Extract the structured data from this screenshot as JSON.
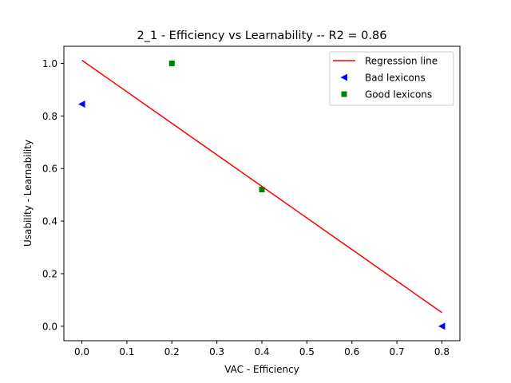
{
  "chart_data": {
    "type": "scatter",
    "title": "2_1 - Efficiency  vs  Learnability -- R2 = 0.86",
    "xlabel": "VAC - Efficiency",
    "ylabel": "Usability - Learnability",
    "xlim": [
      -0.04,
      0.84
    ],
    "ylim": [
      -0.055,
      1.065
    ],
    "x_ticks": [
      0.0,
      0.1,
      0.2,
      0.3,
      0.4,
      0.5,
      0.6,
      0.7,
      0.8
    ],
    "x_tick_labels": [
      "0.0",
      "0.1",
      "0.2",
      "0.3",
      "0.4",
      "0.5",
      "0.6",
      "0.7",
      "0.8"
    ],
    "y_ticks": [
      0.0,
      0.2,
      0.4,
      0.6,
      0.8,
      1.0
    ],
    "y_tick_labels": [
      "0.0",
      "0.2",
      "0.4",
      "0.6",
      "0.8",
      "1.0"
    ],
    "grid": false,
    "legend_position": "top-right",
    "series": [
      {
        "name": "Regression line",
        "kind": "line",
        "color": "#ff0000",
        "points": [
          [
            0.0,
            1.012
          ],
          [
            0.8,
            0.052
          ]
        ]
      },
      {
        "name": "Bad lexicons",
        "kind": "scatter",
        "marker": "triangle-left",
        "color": "#0000ff",
        "points": [
          [
            0.0,
            0.845
          ],
          [
            0.8,
            0.0
          ]
        ]
      },
      {
        "name": "Good lexicons",
        "kind": "scatter",
        "marker": "square",
        "color": "#008000",
        "points": [
          [
            0.2,
            1.0
          ],
          [
            0.4,
            0.52
          ]
        ]
      }
    ]
  }
}
